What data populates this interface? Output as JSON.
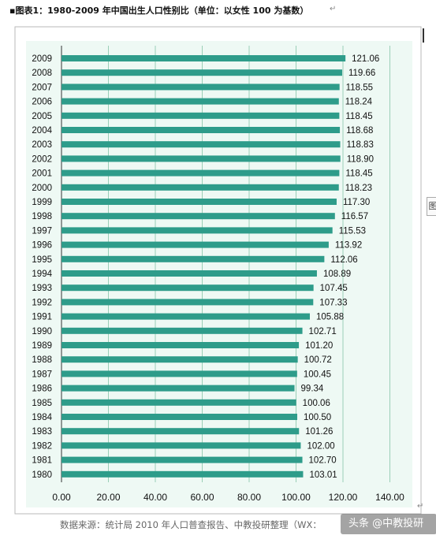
{
  "document": {
    "title": "▪图表1：1980-2009 年中国出生人口性别比（单位：以女性 100 为基数）",
    "paragraph_mark": "↵",
    "side_tab_label": "图",
    "source_text": "数据来源：统计局 2010 年人口普查报告、中教投研整理（WX：",
    "watermark_text": "头条 @中教投研"
  },
  "chart_data": {
    "type": "bar",
    "orientation": "horizontal",
    "title": "",
    "xlabel": "",
    "ylabel": "",
    "xlim": [
      0,
      140
    ],
    "x_ticks": [
      "0.00",
      "20.00",
      "40.00",
      "60.00",
      "80.00",
      "100.00",
      "120.00",
      "140.00"
    ],
    "x_tick_values": [
      0,
      20,
      40,
      60,
      80,
      100,
      120,
      140
    ],
    "grid": "vertical",
    "legend": "none",
    "categories": [
      "2009",
      "2008",
      "2007",
      "2006",
      "2005",
      "2004",
      "2003",
      "2002",
      "2001",
      "2000",
      "1999",
      "1998",
      "1997",
      "1996",
      "1995",
      "1994",
      "1993",
      "1992",
      "1991",
      "1990",
      "1989",
      "1988",
      "1987",
      "1986",
      "1985",
      "1984",
      "1983",
      "1982",
      "1981",
      "1980"
    ],
    "values": [
      121.06,
      119.66,
      118.55,
      118.24,
      118.45,
      118.68,
      118.83,
      118.9,
      118.45,
      118.23,
      117.3,
      116.57,
      115.53,
      113.92,
      112.06,
      108.89,
      107.45,
      107.33,
      105.88,
      102.71,
      101.2,
      100.72,
      100.45,
      99.34,
      100.06,
      100.5,
      101.26,
      102.0,
      102.7,
      103.01
    ],
    "value_labels": [
      "121.06",
      "119.66",
      "118.55",
      "118.24",
      "118.45",
      "118.68",
      "118.83",
      "118.90",
      "118.45",
      "118.23",
      "117.30",
      "116.57",
      "115.53",
      "113.92",
      "112.06",
      "108.89",
      "107.45",
      "107.33",
      "105.88",
      "102.71",
      "101.20",
      "100.72",
      "100.45",
      "99.34",
      "100.06",
      "100.50",
      "101.26",
      "102.00",
      "102.70",
      "103.01"
    ],
    "colors": {
      "bar": "#2e9c8a",
      "plot_background": "#eef9f4",
      "gridline": "#9bcfb7",
      "axis": "#333333",
      "text": "#111111"
    }
  }
}
